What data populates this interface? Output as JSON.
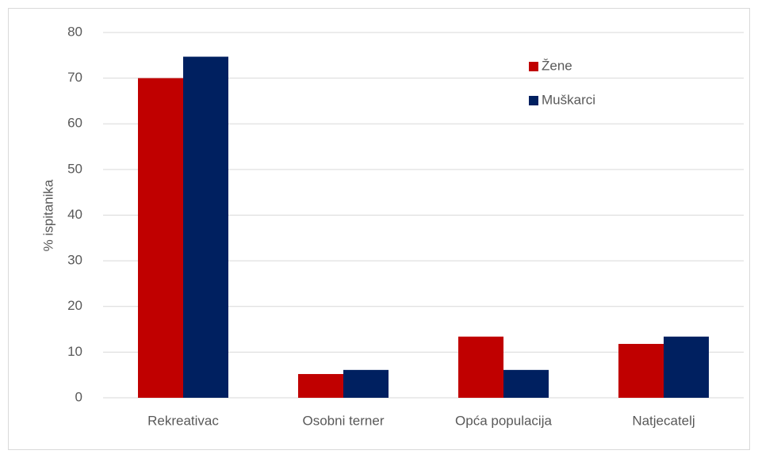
{
  "chart_data": {
    "type": "bar",
    "y_label": "% ispitanika",
    "categories": [
      "Rekreativac",
      "Osobni terner",
      "Opća populacija",
      "Natjecatelj"
    ],
    "series": [
      {
        "name": "Žene",
        "color": "#c00000",
        "values": [
          70,
          5.2,
          13.4,
          11.8
        ]
      },
      {
        "name": "Muškarci",
        "color": "#002060",
        "values": [
          74.7,
          6.1,
          6.1,
          13.4
        ]
      }
    ],
    "ylim": [
      0,
      80
    ],
    "yticks": [
      0,
      10,
      20,
      30,
      40,
      50,
      60,
      70,
      80
    ],
    "grid": true,
    "legend": "top-right"
  }
}
